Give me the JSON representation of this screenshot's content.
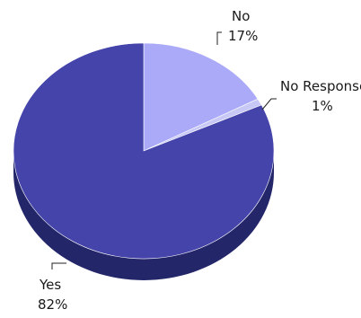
{
  "chart_data": {
    "type": "pie",
    "style": "3d",
    "slices": [
      {
        "label": "No",
        "value": 17,
        "value_label": "17%",
        "color": "#aaaaf8"
      },
      {
        "label": "No Response",
        "value": 1,
        "value_label": "1%",
        "color": "#c8c8f6"
      },
      {
        "label": "Yes",
        "value": 82,
        "value_label": "82%",
        "color": "#4444aa"
      }
    ],
    "side_colors": {
      "Yes": "#24266a",
      "No": "#7a7ac2",
      "No Response": "#9a9ad0"
    },
    "start_angle_deg": -90,
    "direction": "clockwise"
  }
}
